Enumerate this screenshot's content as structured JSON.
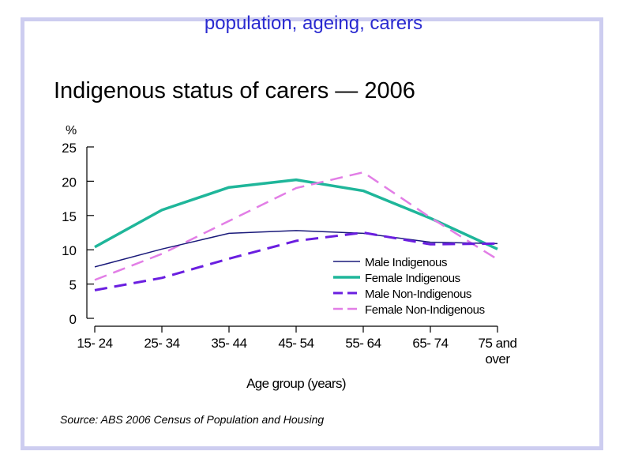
{
  "slide": {
    "header": "population, ageing, carers",
    "frame_color": "#cdcdf0",
    "header_color": "#2a2ad0"
  },
  "chart_data": {
    "type": "line",
    "title": "Indigenous status of carers — 2006",
    "ylabel": "%",
    "xlabel": "Age group (years)",
    "ylim": [
      0,
      25
    ],
    "yticks": [
      "0",
      "5",
      "10",
      "15",
      "20",
      "25"
    ],
    "categories": [
      "15-24",
      "25-34",
      "35-44",
      "45-54",
      "55-64",
      "65-74",
      "75 and over"
    ],
    "category_labels": [
      [
        "15- 24"
      ],
      [
        "25- 34"
      ],
      [
        "35- 44"
      ],
      [
        "45- 54"
      ],
      [
        "55- 64"
      ],
      [
        "65- 74"
      ],
      [
        "75 and",
        "over"
      ]
    ],
    "legend_position": "lower-right",
    "series": [
      {
        "name": "Male Indigenous",
        "color": "#1a1a7a",
        "style": "solid",
        "width": 1.5,
        "values": [
          7.5,
          10.1,
          12.4,
          12.8,
          12.4,
          11.1,
          10.9
        ]
      },
      {
        "name": "Female Indigenous",
        "color": "#1fb69a",
        "style": "solid",
        "width": 3.5,
        "values": [
          10.4,
          15.8,
          19.1,
          20.2,
          18.6,
          14.6,
          10.1
        ]
      },
      {
        "name": "Male Non-Indigenous",
        "color": "#6a1ee0",
        "style": "dashed",
        "width": 3,
        "values": [
          4.1,
          5.9,
          8.7,
          11.3,
          12.5,
          10.8,
          10.9
        ]
      },
      {
        "name": "Female Non-Indigenous",
        "color": "#e27ee6",
        "style": "dashed",
        "width": 2.5,
        "values": [
          5.6,
          9.4,
          14.2,
          19.0,
          21.3,
          14.7,
          8.6
        ]
      }
    ],
    "source": "Source: ABS 2006 Census of Population and Housing"
  }
}
